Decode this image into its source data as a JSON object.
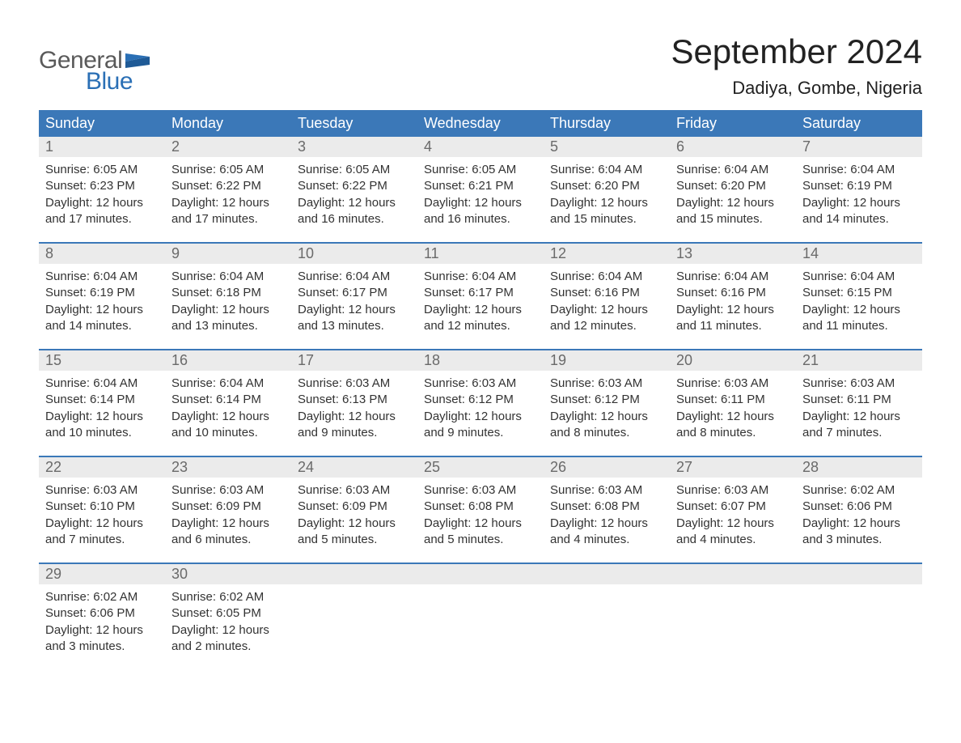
{
  "brand": {
    "word1": "General",
    "word2": "Blue",
    "gray_color": "#5a5a5a",
    "blue_color": "#2a6fb5",
    "flag_color": "#2a6fb5"
  },
  "title": {
    "month_year": "September 2024",
    "location": "Dadiya, Gombe, Nigeria",
    "title_fontsize": 42,
    "location_fontsize": 22,
    "text_color": "#222222"
  },
  "calendar": {
    "type": "table",
    "header_bg": "#3b78b8",
    "header_text_color": "#ffffff",
    "daynum_bg": "#ebebeb",
    "daynum_color": "#6a6a6a",
    "week_border_color": "#3b78b8",
    "body_text_color": "#333333",
    "background_color": "#ffffff",
    "columns": [
      "Sunday",
      "Monday",
      "Tuesday",
      "Wednesday",
      "Thursday",
      "Friday",
      "Saturday"
    ],
    "weeks": [
      [
        {
          "n": "1",
          "sunrise": "Sunrise: 6:05 AM",
          "sunset": "Sunset: 6:23 PM",
          "d1": "Daylight: 12 hours",
          "d2": "and 17 minutes."
        },
        {
          "n": "2",
          "sunrise": "Sunrise: 6:05 AM",
          "sunset": "Sunset: 6:22 PM",
          "d1": "Daylight: 12 hours",
          "d2": "and 17 minutes."
        },
        {
          "n": "3",
          "sunrise": "Sunrise: 6:05 AM",
          "sunset": "Sunset: 6:22 PM",
          "d1": "Daylight: 12 hours",
          "d2": "and 16 minutes."
        },
        {
          "n": "4",
          "sunrise": "Sunrise: 6:05 AM",
          "sunset": "Sunset: 6:21 PM",
          "d1": "Daylight: 12 hours",
          "d2": "and 16 minutes."
        },
        {
          "n": "5",
          "sunrise": "Sunrise: 6:04 AM",
          "sunset": "Sunset: 6:20 PM",
          "d1": "Daylight: 12 hours",
          "d2": "and 15 minutes."
        },
        {
          "n": "6",
          "sunrise": "Sunrise: 6:04 AM",
          "sunset": "Sunset: 6:20 PM",
          "d1": "Daylight: 12 hours",
          "d2": "and 15 minutes."
        },
        {
          "n": "7",
          "sunrise": "Sunrise: 6:04 AM",
          "sunset": "Sunset: 6:19 PM",
          "d1": "Daylight: 12 hours",
          "d2": "and 14 minutes."
        }
      ],
      [
        {
          "n": "8",
          "sunrise": "Sunrise: 6:04 AM",
          "sunset": "Sunset: 6:19 PM",
          "d1": "Daylight: 12 hours",
          "d2": "and 14 minutes."
        },
        {
          "n": "9",
          "sunrise": "Sunrise: 6:04 AM",
          "sunset": "Sunset: 6:18 PM",
          "d1": "Daylight: 12 hours",
          "d2": "and 13 minutes."
        },
        {
          "n": "10",
          "sunrise": "Sunrise: 6:04 AM",
          "sunset": "Sunset: 6:17 PM",
          "d1": "Daylight: 12 hours",
          "d2": "and 13 minutes."
        },
        {
          "n": "11",
          "sunrise": "Sunrise: 6:04 AM",
          "sunset": "Sunset: 6:17 PM",
          "d1": "Daylight: 12 hours",
          "d2": "and 12 minutes."
        },
        {
          "n": "12",
          "sunrise": "Sunrise: 6:04 AM",
          "sunset": "Sunset: 6:16 PM",
          "d1": "Daylight: 12 hours",
          "d2": "and 12 minutes."
        },
        {
          "n": "13",
          "sunrise": "Sunrise: 6:04 AM",
          "sunset": "Sunset: 6:16 PM",
          "d1": "Daylight: 12 hours",
          "d2": "and 11 minutes."
        },
        {
          "n": "14",
          "sunrise": "Sunrise: 6:04 AM",
          "sunset": "Sunset: 6:15 PM",
          "d1": "Daylight: 12 hours",
          "d2": "and 11 minutes."
        }
      ],
      [
        {
          "n": "15",
          "sunrise": "Sunrise: 6:04 AM",
          "sunset": "Sunset: 6:14 PM",
          "d1": "Daylight: 12 hours",
          "d2": "and 10 minutes."
        },
        {
          "n": "16",
          "sunrise": "Sunrise: 6:04 AM",
          "sunset": "Sunset: 6:14 PM",
          "d1": "Daylight: 12 hours",
          "d2": "and 10 minutes."
        },
        {
          "n": "17",
          "sunrise": "Sunrise: 6:03 AM",
          "sunset": "Sunset: 6:13 PM",
          "d1": "Daylight: 12 hours",
          "d2": "and 9 minutes."
        },
        {
          "n": "18",
          "sunrise": "Sunrise: 6:03 AM",
          "sunset": "Sunset: 6:12 PM",
          "d1": "Daylight: 12 hours",
          "d2": "and 9 minutes."
        },
        {
          "n": "19",
          "sunrise": "Sunrise: 6:03 AM",
          "sunset": "Sunset: 6:12 PM",
          "d1": "Daylight: 12 hours",
          "d2": "and 8 minutes."
        },
        {
          "n": "20",
          "sunrise": "Sunrise: 6:03 AM",
          "sunset": "Sunset: 6:11 PM",
          "d1": "Daylight: 12 hours",
          "d2": "and 8 minutes."
        },
        {
          "n": "21",
          "sunrise": "Sunrise: 6:03 AM",
          "sunset": "Sunset: 6:11 PM",
          "d1": "Daylight: 12 hours",
          "d2": "and 7 minutes."
        }
      ],
      [
        {
          "n": "22",
          "sunrise": "Sunrise: 6:03 AM",
          "sunset": "Sunset: 6:10 PM",
          "d1": "Daylight: 12 hours",
          "d2": "and 7 minutes."
        },
        {
          "n": "23",
          "sunrise": "Sunrise: 6:03 AM",
          "sunset": "Sunset: 6:09 PM",
          "d1": "Daylight: 12 hours",
          "d2": "and 6 minutes."
        },
        {
          "n": "24",
          "sunrise": "Sunrise: 6:03 AM",
          "sunset": "Sunset: 6:09 PM",
          "d1": "Daylight: 12 hours",
          "d2": "and 5 minutes."
        },
        {
          "n": "25",
          "sunrise": "Sunrise: 6:03 AM",
          "sunset": "Sunset: 6:08 PM",
          "d1": "Daylight: 12 hours",
          "d2": "and 5 minutes."
        },
        {
          "n": "26",
          "sunrise": "Sunrise: 6:03 AM",
          "sunset": "Sunset: 6:08 PM",
          "d1": "Daylight: 12 hours",
          "d2": "and 4 minutes."
        },
        {
          "n": "27",
          "sunrise": "Sunrise: 6:03 AM",
          "sunset": "Sunset: 6:07 PM",
          "d1": "Daylight: 12 hours",
          "d2": "and 4 minutes."
        },
        {
          "n": "28",
          "sunrise": "Sunrise: 6:02 AM",
          "sunset": "Sunset: 6:06 PM",
          "d1": "Daylight: 12 hours",
          "d2": "and 3 minutes."
        }
      ],
      [
        {
          "n": "29",
          "sunrise": "Sunrise: 6:02 AM",
          "sunset": "Sunset: 6:06 PM",
          "d1": "Daylight: 12 hours",
          "d2": "and 3 minutes."
        },
        {
          "n": "30",
          "sunrise": "Sunrise: 6:02 AM",
          "sunset": "Sunset: 6:05 PM",
          "d1": "Daylight: 12 hours",
          "d2": "and 2 minutes."
        },
        {
          "n": "",
          "sunrise": "",
          "sunset": "",
          "d1": "",
          "d2": ""
        },
        {
          "n": "",
          "sunrise": "",
          "sunset": "",
          "d1": "",
          "d2": ""
        },
        {
          "n": "",
          "sunrise": "",
          "sunset": "",
          "d1": "",
          "d2": ""
        },
        {
          "n": "",
          "sunrise": "",
          "sunset": "",
          "d1": "",
          "d2": ""
        },
        {
          "n": "",
          "sunrise": "",
          "sunset": "",
          "d1": "",
          "d2": ""
        }
      ]
    ]
  }
}
